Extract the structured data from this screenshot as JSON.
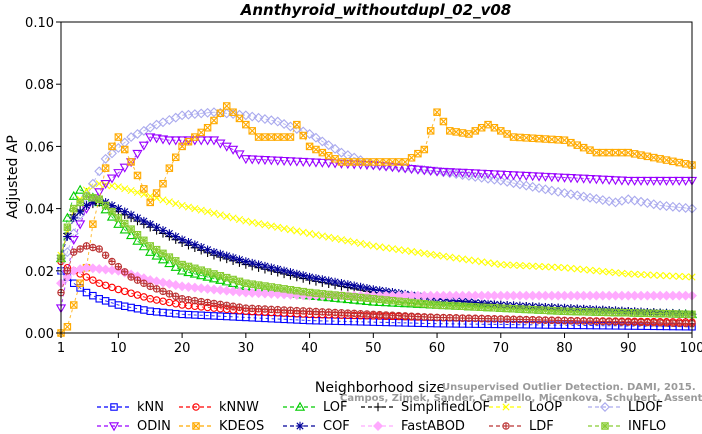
{
  "chart_data": {
    "type": "line",
    "title": "Annthyroid_withoutdupl_02_v08",
    "xlabel": "Neighborhood size",
    "ylabel": "Adjusted AP",
    "xlim": [
      1,
      100
    ],
    "ylim": [
      0,
      0.1
    ],
    "xticks": [
      1,
      10,
      20,
      30,
      40,
      50,
      60,
      70,
      80,
      90,
      100
    ],
    "yticks": [
      0.0,
      0.02,
      0.04,
      0.06,
      0.08,
      0.1
    ],
    "ytick_labels": [
      "0.00",
      "0.02",
      "0.04",
      "0.06",
      "0.08",
      "0.10"
    ],
    "grid": false,
    "legend_position": "bottom",
    "series": [
      {
        "name": "kNN",
        "color": "#0000ff",
        "marker": "square",
        "points": [
          [
            1,
            0.02
          ],
          [
            2,
            0.018
          ],
          [
            3,
            0.016
          ],
          [
            5,
            0.013
          ],
          [
            7,
            0.011
          ],
          [
            10,
            0.009
          ],
          [
            15,
            0.007
          ],
          [
            20,
            0.006
          ],
          [
            30,
            0.005
          ],
          [
            40,
            0.004
          ],
          [
            60,
            0.003
          ],
          [
            80,
            0.0025
          ],
          [
            100,
            0.002
          ]
        ]
      },
      {
        "name": "kNNW",
        "color": "#ff0000",
        "marker": "circle",
        "points": [
          [
            1,
            0.023
          ],
          [
            2,
            0.021
          ],
          [
            3,
            0.02
          ],
          [
            5,
            0.018
          ],
          [
            7,
            0.016
          ],
          [
            10,
            0.014
          ],
          [
            15,
            0.011
          ],
          [
            20,
            0.009
          ],
          [
            30,
            0.007
          ],
          [
            40,
            0.006
          ],
          [
            60,
            0.005
          ],
          [
            80,
            0.004
          ],
          [
            100,
            0.0035
          ]
        ]
      },
      {
        "name": "LOF",
        "color": "#00cc00",
        "marker": "triangle-up",
        "points": [
          [
            1,
            0.024
          ],
          [
            2,
            0.037
          ],
          [
            3,
            0.044
          ],
          [
            4,
            0.046
          ],
          [
            5,
            0.045
          ],
          [
            7,
            0.042
          ],
          [
            10,
            0.035
          ],
          [
            15,
            0.026
          ],
          [
            20,
            0.02
          ],
          [
            30,
            0.015
          ],
          [
            40,
            0.012
          ],
          [
            50,
            0.01
          ],
          [
            60,
            0.009
          ],
          [
            80,
            0.007
          ],
          [
            100,
            0.006
          ]
        ]
      },
      {
        "name": "SimplifiedLOF",
        "color": "#000000",
        "marker": "plus",
        "points": [
          [
            1,
            0.025
          ],
          [
            2,
            0.032
          ],
          [
            3,
            0.038
          ],
          [
            5,
            0.041
          ],
          [
            7,
            0.042
          ],
          [
            10,
            0.039
          ],
          [
            15,
            0.034
          ],
          [
            20,
            0.029
          ],
          [
            25,
            0.025
          ],
          [
            30,
            0.022
          ],
          [
            40,
            0.017
          ],
          [
            50,
            0.013
          ],
          [
            60,
            0.011
          ],
          [
            70,
            0.009
          ],
          [
            80,
            0.008
          ],
          [
            90,
            0.007
          ],
          [
            100,
            0.006
          ]
        ]
      },
      {
        "name": "LoOP",
        "color": "#ffff00",
        "marker": "x",
        "points": [
          [
            1,
            0.025
          ],
          [
            3,
            0.04
          ],
          [
            5,
            0.046
          ],
          [
            7,
            0.048
          ],
          [
            10,
            0.047
          ],
          [
            15,
            0.044
          ],
          [
            20,
            0.041
          ],
          [
            30,
            0.036
          ],
          [
            40,
            0.032
          ],
          [
            50,
            0.028
          ],
          [
            60,
            0.025
          ],
          [
            70,
            0.022
          ],
          [
            80,
            0.021
          ],
          [
            90,
            0.019
          ],
          [
            100,
            0.018
          ]
        ]
      },
      {
        "name": "LDOF",
        "color": "#aaaaee",
        "marker": "diamond",
        "points": [
          [
            1,
            0.02
          ],
          [
            3,
            0.032
          ],
          [
            5,
            0.044
          ],
          [
            8,
            0.056
          ],
          [
            12,
            0.063
          ],
          [
            16,
            0.067
          ],
          [
            20,
            0.07
          ],
          [
            25,
            0.071
          ],
          [
            30,
            0.07
          ],
          [
            35,
            0.068
          ],
          [
            40,
            0.064
          ],
          [
            45,
            0.058
          ],
          [
            50,
            0.054
          ],
          [
            60,
            0.052
          ],
          [
            70,
            0.049
          ],
          [
            80,
            0.045
          ],
          [
            88,
            0.042
          ],
          [
            90,
            0.043
          ],
          [
            95,
            0.041
          ],
          [
            100,
            0.04
          ]
        ]
      },
      {
        "name": "ODIN",
        "color": "#9900ff",
        "marker": "triangle-down",
        "points": [
          [
            1,
            0.008
          ],
          [
            3,
            0.03
          ],
          [
            5,
            0.04
          ],
          [
            8,
            0.048
          ],
          [
            12,
            0.055
          ],
          [
            15,
            0.063
          ],
          [
            18,
            0.062
          ],
          [
            20,
            0.062
          ],
          [
            25,
            0.062
          ],
          [
            28,
            0.059
          ],
          [
            30,
            0.056
          ],
          [
            40,
            0.055
          ],
          [
            50,
            0.054
          ],
          [
            60,
            0.052
          ],
          [
            70,
            0.051
          ],
          [
            80,
            0.05
          ],
          [
            90,
            0.049
          ],
          [
            100,
            0.049
          ]
        ]
      },
      {
        "name": "KDEOS",
        "color": "#ffaa00",
        "marker": "boxed-x",
        "points": [
          [
            1,
            0.0
          ],
          [
            2,
            0.002
          ],
          [
            3,
            0.009
          ],
          [
            4,
            0.016
          ],
          [
            5,
            0.021
          ],
          [
            6,
            0.035
          ],
          [
            7,
            0.043
          ],
          [
            8,
            0.053
          ],
          [
            9,
            0.06
          ],
          [
            10,
            0.063
          ],
          [
            12,
            0.055
          ],
          [
            15,
            0.042
          ],
          [
            17,
            0.048
          ],
          [
            18,
            0.053
          ],
          [
            20,
            0.06
          ],
          [
            24,
            0.066
          ],
          [
            27,
            0.073
          ],
          [
            29,
            0.069
          ],
          [
            32,
            0.063
          ],
          [
            37,
            0.063
          ],
          [
            38,
            0.067
          ],
          [
            40,
            0.06
          ],
          [
            45,
            0.055
          ],
          [
            50,
            0.055
          ],
          [
            55,
            0.055
          ],
          [
            58,
            0.059
          ],
          [
            60,
            0.071
          ],
          [
            62,
            0.065
          ],
          [
            65,
            0.064
          ],
          [
            68,
            0.067
          ],
          [
            72,
            0.063
          ],
          [
            80,
            0.062
          ],
          [
            85,
            0.058
          ],
          [
            90,
            0.058
          ],
          [
            95,
            0.056
          ],
          [
            100,
            0.054
          ]
        ]
      },
      {
        "name": "COF",
        "color": "#000099",
        "marker": "asterisk",
        "points": [
          [
            1,
            0.024
          ],
          [
            2,
            0.031
          ],
          [
            3,
            0.037
          ],
          [
            5,
            0.041
          ],
          [
            7,
            0.043
          ],
          [
            10,
            0.04
          ],
          [
            15,
            0.035
          ],
          [
            20,
            0.03
          ],
          [
            25,
            0.026
          ],
          [
            30,
            0.023
          ],
          [
            40,
            0.018
          ],
          [
            50,
            0.014
          ],
          [
            60,
            0.011
          ],
          [
            70,
            0.009
          ],
          [
            80,
            0.008
          ],
          [
            90,
            0.007
          ],
          [
            100,
            0.006
          ]
        ]
      },
      {
        "name": "FastABOD",
        "color": "#ffaaff",
        "marker": "diamond-filled",
        "points": [
          [
            1,
            0.016
          ],
          [
            3,
            0.02
          ],
          [
            5,
            0.021
          ],
          [
            10,
            0.02
          ],
          [
            15,
            0.017
          ],
          [
            20,
            0.015
          ],
          [
            30,
            0.013
          ],
          [
            40,
            0.012
          ],
          [
            50,
            0.012
          ],
          [
            70,
            0.012
          ],
          [
            100,
            0.012
          ]
        ]
      },
      {
        "name": "LDF",
        "color": "#bb3333",
        "marker": "circle-plus",
        "points": [
          [
            1,
            0.013
          ],
          [
            2,
            0.02
          ],
          [
            3,
            0.026
          ],
          [
            5,
            0.028
          ],
          [
            7,
            0.027
          ],
          [
            9,
            0.023
          ],
          [
            12,
            0.018
          ],
          [
            15,
            0.015
          ],
          [
            20,
            0.011
          ],
          [
            30,
            0.008
          ],
          [
            40,
            0.007
          ],
          [
            60,
            0.005
          ],
          [
            80,
            0.004
          ],
          [
            100,
            0.003
          ]
        ]
      },
      {
        "name": "INFLO",
        "color": "#88cc33",
        "marker": "boxed-asterisk",
        "points": [
          [
            1,
            0.024
          ],
          [
            2,
            0.034
          ],
          [
            3,
            0.04
          ],
          [
            5,
            0.044
          ],
          [
            7,
            0.043
          ],
          [
            10,
            0.037
          ],
          [
            15,
            0.028
          ],
          [
            20,
            0.022
          ],
          [
            30,
            0.016
          ],
          [
            40,
            0.013
          ],
          [
            50,
            0.011
          ],
          [
            60,
            0.009
          ],
          [
            80,
            0.007
          ],
          [
            100,
            0.006
          ]
        ]
      }
    ],
    "legend_order": [
      "kNN",
      "kNNW",
      "LOF",
      "SimplifiedLOF",
      "LoOP",
      "LDOF",
      "ODIN",
      "KDEOS",
      "COF",
      "FastABOD",
      "LDF",
      "INFLO"
    ]
  },
  "watermark": {
    "line1": "Unsupervised Outlier Detection. DAMI, 2015.",
    "line2": "Campos, Zimek, Sander, Campello, Micenkova, Schubert, Assent, Houle"
  }
}
